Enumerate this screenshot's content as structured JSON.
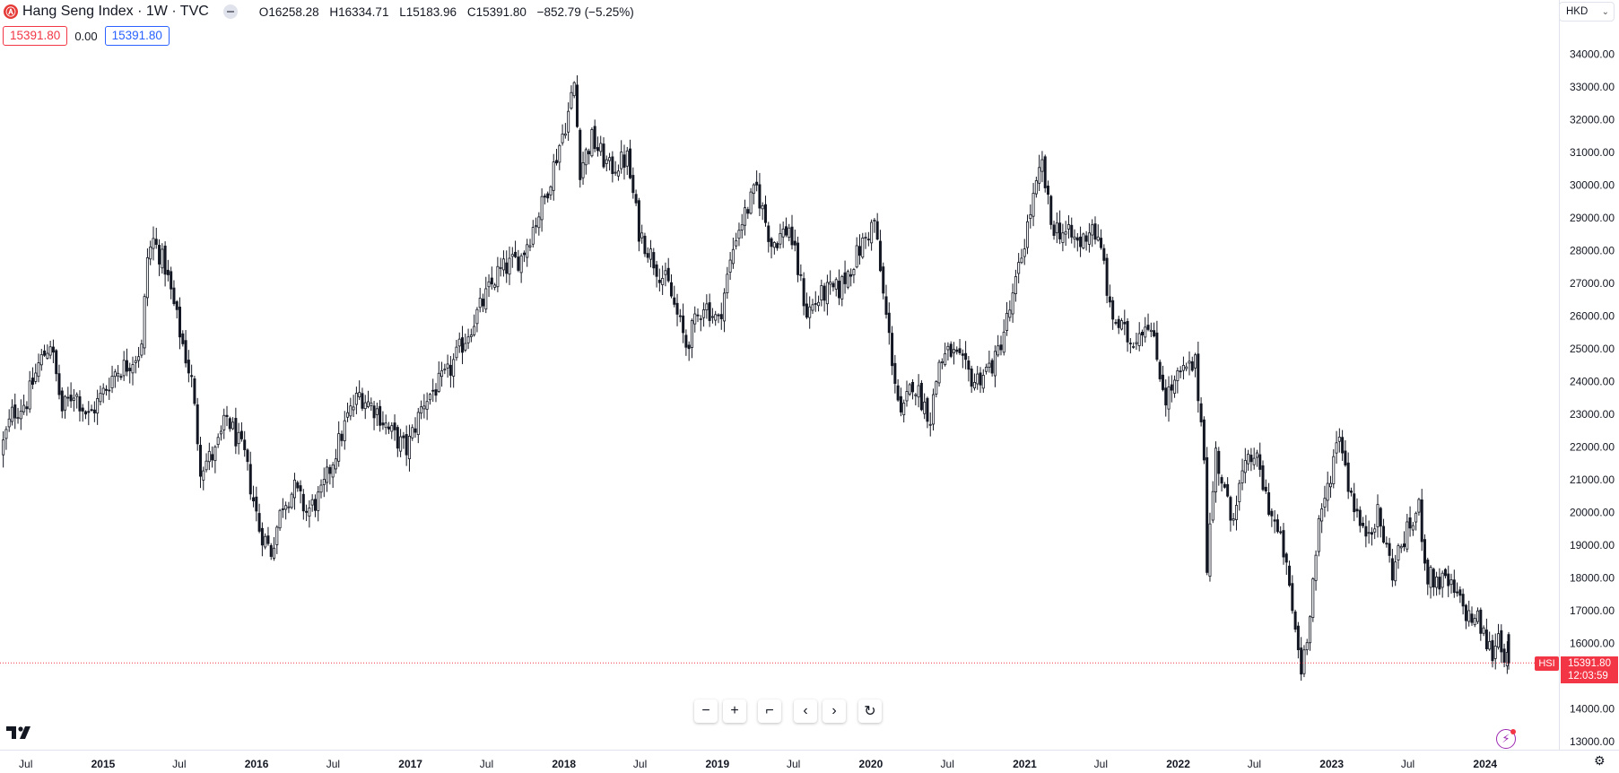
{
  "header": {
    "symbol_icon": "Ⓐ",
    "title": "Hang Seng Index · 1W · TVC",
    "ohlc": {
      "o_label": "O",
      "o": "16258.28",
      "h_label": "H",
      "h": "16334.71",
      "l_label": "L",
      "l": "15183.96",
      "c_label": "C",
      "c": "15391.80",
      "change": "−852.79 (−5.25%)"
    },
    "sell_price": "15391.80",
    "spread": "0.00",
    "buy_price": "15391.80"
  },
  "currency": {
    "label": "HKD"
  },
  "last_price": {
    "value": "15391.80",
    "countdown": "12:03:59",
    "symbol_tag": "HSI"
  },
  "icons": {
    "symbol": "symbol-logo-icon",
    "market_status": "market-status-icon",
    "currency_chevron": "chevron-down-icon",
    "zoom_out": "zoom-out-icon",
    "zoom_in": "zoom-in-icon",
    "reset_scale": "reset-scale-icon",
    "scroll_left": "chevron-left-icon",
    "scroll_right": "chevron-right-icon",
    "reset": "reset-icon",
    "logo": "tradingview-logo-icon",
    "bolt": "lightning-icon",
    "settings": "gear-icon"
  },
  "nav_buttons": [
    "−",
    "+",
    "⌐",
    "‹",
    "›",
    "↻"
  ],
  "colors": {
    "last_price": "#f23645",
    "sell": "#f23645",
    "buy": "#2962ff",
    "candle": "#131722",
    "grid_text": "#131722"
  },
  "chart_data": {
    "type": "candlestick",
    "title": "Hang Seng Index · 1W · TVC",
    "frequency": "weekly",
    "y_axis": {
      "ticks": [
        13000,
        14000,
        15000,
        16000,
        17000,
        18000,
        19000,
        20000,
        21000,
        22000,
        23000,
        24000,
        25000,
        26000,
        27000,
        28000,
        29000,
        30000,
        31000,
        32000,
        33000,
        34000
      ],
      "tick_labels": [
        "13000.00",
        "14000.00",
        "15000.00",
        "16000.00",
        "17000.00",
        "18000.00",
        "19000.00",
        "20000.00",
        "21000.00",
        "22000.00",
        "23000.00",
        "24000.00",
        "25000.00",
        "26000.00",
        "27000.00",
        "28000.00",
        "29000.00",
        "30000.00",
        "31000.00",
        "32000.00",
        "33000.00",
        "34000.00"
      ],
      "range": [
        12800,
        34900
      ],
      "position": "right"
    },
    "x_axis": {
      "range": [
        "2014-05-05",
        "2024-02-26"
      ],
      "ticks": [
        {
          "date": "2014-07-01",
          "label": "Jul"
        },
        {
          "date": "2015-01-01",
          "label": "2015"
        },
        {
          "date": "2015-07-01",
          "label": "Jul"
        },
        {
          "date": "2016-01-01",
          "label": "2016"
        },
        {
          "date": "2016-07-01",
          "label": "Jul"
        },
        {
          "date": "2017-01-01",
          "label": "2017"
        },
        {
          "date": "2017-07-01",
          "label": "Jul"
        },
        {
          "date": "2018-01-01",
          "label": "2018"
        },
        {
          "date": "2018-07-01",
          "label": "Jul"
        },
        {
          "date": "2019-01-01",
          "label": "2019"
        },
        {
          "date": "2019-07-01",
          "label": "Jul"
        },
        {
          "date": "2020-01-01",
          "label": "2020"
        },
        {
          "date": "2020-07-01",
          "label": "Jul"
        },
        {
          "date": "2021-01-01",
          "label": "2021"
        },
        {
          "date": "2021-07-01",
          "label": "Jul"
        },
        {
          "date": "2022-01-01",
          "label": "2022"
        },
        {
          "date": "2022-07-01",
          "label": "Jul"
        },
        {
          "date": "2023-01-01",
          "label": "2023"
        },
        {
          "date": "2023-07-01",
          "label": "Jul"
        },
        {
          "date": "2024-01-01",
          "label": "2024"
        }
      ]
    },
    "last_close": 15391.8,
    "close_path": [
      [
        "2014-05-05",
        21800
      ],
      [
        "2014-06-02",
        23000
      ],
      [
        "2014-07-07",
        23400
      ],
      [
        "2014-08-04",
        24500
      ],
      [
        "2014-09-01",
        25200
      ],
      [
        "2014-09-29",
        23100
      ],
      [
        "2014-10-27",
        23700
      ],
      [
        "2014-12-01",
        22900
      ],
      [
        "2014-12-29",
        23500
      ],
      [
        "2015-02-02",
        24300
      ],
      [
        "2015-03-02",
        24500
      ],
      [
        "2015-04-06",
        25000
      ],
      [
        "2015-04-20",
        27800
      ],
      [
        "2015-05-04",
        28300
      ],
      [
        "2015-06-01",
        27500
      ],
      [
        "2015-07-06",
        25500
      ],
      [
        "2015-08-03",
        24000
      ],
      [
        "2015-08-24",
        21400
      ],
      [
        "2015-09-28",
        21800
      ],
      [
        "2015-10-26",
        22900
      ],
      [
        "2015-12-07",
        21700
      ],
      [
        "2016-01-11",
        19500
      ],
      [
        "2016-02-08",
        18800
      ],
      [
        "2016-03-07",
        20300
      ],
      [
        "2016-04-04",
        20700
      ],
      [
        "2016-05-02",
        20000
      ],
      [
        "2016-06-06",
        20500
      ],
      [
        "2016-07-04",
        21600
      ],
      [
        "2016-08-08",
        22900
      ],
      [
        "2016-09-05",
        23600
      ],
      [
        "2016-10-17",
        23100
      ],
      [
        "2016-11-14",
        22500
      ],
      [
        "2016-12-26",
        21900
      ],
      [
        "2017-02-06",
        23400
      ],
      [
        "2017-04-03",
        24200
      ],
      [
        "2017-05-29",
        25700
      ],
      [
        "2017-07-31",
        27300
      ],
      [
        "2017-09-25",
        27800
      ],
      [
        "2017-11-20",
        29600
      ],
      [
        "2018-01-15",
        32200
      ],
      [
        "2018-01-29",
        33100
      ],
      [
        "2018-02-12",
        30500
      ],
      [
        "2018-03-12",
        31400
      ],
      [
        "2018-04-23",
        30500
      ],
      [
        "2018-06-04",
        30800
      ],
      [
        "2018-07-02",
        28600
      ],
      [
        "2018-08-13",
        27500
      ],
      [
        "2018-09-10",
        26900
      ],
      [
        "2018-10-22",
        25100
      ],
      [
        "2018-12-03",
        26400
      ],
      [
        "2019-01-07",
        25800
      ],
      [
        "2019-02-18",
        28500
      ],
      [
        "2019-04-08",
        29900
      ],
      [
        "2019-05-13",
        28200
      ],
      [
        "2019-06-24",
        28700
      ],
      [
        "2019-08-05",
        26100
      ],
      [
        "2019-09-16",
        26700
      ],
      [
        "2019-10-21",
        26800
      ],
      [
        "2019-11-18",
        27500
      ],
      [
        "2020-01-13",
        28900
      ],
      [
        "2020-02-03",
        26600
      ],
      [
        "2020-03-16",
        22800
      ],
      [
        "2020-04-13",
        24000
      ],
      [
        "2020-05-25",
        22900
      ],
      [
        "2020-06-15",
        24600
      ],
      [
        "2020-07-13",
        24900
      ],
      [
        "2020-09-07",
        24000
      ],
      [
        "2020-10-26",
        24600
      ],
      [
        "2020-12-07",
        26500
      ],
      [
        "2021-01-18",
        29200
      ],
      [
        "2021-02-15",
        30600
      ],
      [
        "2021-03-08",
        28800
      ],
      [
        "2021-05-17",
        28200
      ],
      [
        "2021-06-14",
        28800
      ],
      [
        "2021-07-12",
        27600
      ],
      [
        "2021-07-26",
        26100
      ],
      [
        "2021-09-13",
        25200
      ],
      [
        "2021-10-25",
        25900
      ],
      [
        "2021-12-06",
        23500
      ],
      [
        "2022-01-10",
        24200
      ],
      [
        "2022-02-14",
        24500
      ],
      [
        "2022-03-07",
        21900
      ],
      [
        "2022-03-14",
        18400
      ],
      [
        "2022-04-04",
        21800
      ],
      [
        "2022-05-09",
        19800
      ],
      [
        "2022-06-06",
        21100
      ],
      [
        "2022-07-04",
        21800
      ],
      [
        "2022-08-08",
        20200
      ],
      [
        "2022-09-12",
        18800
      ],
      [
        "2022-10-24",
        15200
      ],
      [
        "2022-11-07",
        16300
      ],
      [
        "2022-12-05",
        19500
      ],
      [
        "2023-01-23",
        22500
      ],
      [
        "2023-02-13",
        20900
      ],
      [
        "2023-03-20",
        19300
      ],
      [
        "2023-04-24",
        19900
      ],
      [
        "2023-05-29",
        18200
      ],
      [
        "2023-06-19",
        19000
      ],
      [
        "2023-07-31",
        20100
      ],
      [
        "2023-08-21",
        18000
      ],
      [
        "2023-10-09",
        17800
      ],
      [
        "2023-11-27",
        16800
      ],
      [
        "2023-12-18",
        16700
      ],
      [
        "2024-01-08",
        16000
      ],
      [
        "2024-01-22",
        15700
      ],
      [
        "2024-02-05",
        16300
      ],
      [
        "2024-02-26",
        15391.8
      ]
    ],
    "ohlc_last": {
      "open": 16258.28,
      "high": 16334.71,
      "low": 15183.96,
      "close": 15391.8
    }
  }
}
